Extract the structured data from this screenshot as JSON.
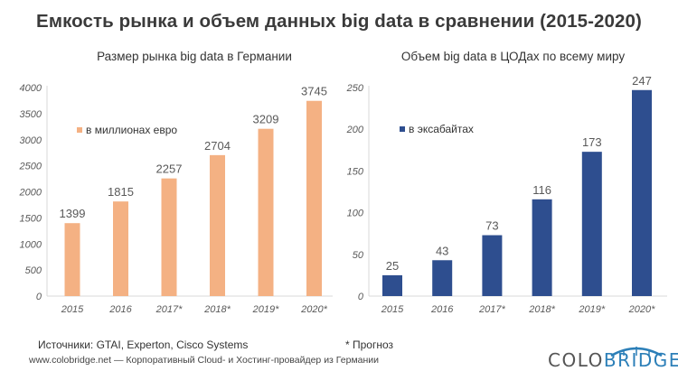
{
  "title": "Емкость рынка и объем данных big data в сравнении (2015-2020)",
  "chart_data": [
    {
      "type": "bar",
      "title": "Размер рынка big data в Германии",
      "categories": [
        "2015",
        "2016",
        "2017*",
        "2018*",
        "2019*",
        "2020*"
      ],
      "series": [
        {
          "name": "в миллионах евро",
          "values": [
            1399,
            1815,
            2257,
            2704,
            3209,
            3745
          ]
        }
      ],
      "ylim": [
        0,
        4000
      ],
      "yticks": [
        0,
        500,
        1000,
        1500,
        2000,
        2500,
        3000,
        3500,
        4000
      ],
      "color": "#f4b183",
      "legend": "top-left",
      "grid": false
    },
    {
      "type": "bar",
      "title": "Объем big data в ЦОДах по всему миру",
      "categories": [
        "2015",
        "2016",
        "2017*",
        "2018*",
        "2019*",
        "2020*"
      ],
      "series": [
        {
          "name": "в эксабайтах",
          "values": [
            25,
            43,
            73,
            116,
            173,
            247
          ]
        }
      ],
      "ylim": [
        0,
        250
      ],
      "yticks": [
        0,
        50,
        100,
        150,
        200,
        250
      ],
      "color": "#2e4e8f",
      "legend": "top-left",
      "grid": false
    }
  ],
  "footer": {
    "sources": "Источники: GTAI, Experton, Cisco Systems",
    "note": "* Прогноз",
    "site": "www.colobridge.net — Корпоративный Cloud- и Хостинг-провайдер из Германии",
    "logo_part1": "COLO",
    "logo_part2": "BRIDGE"
  },
  "colors": {
    "arc": "#2c7fb8",
    "axis": "#d9d9d9",
    "text": "#595959"
  }
}
